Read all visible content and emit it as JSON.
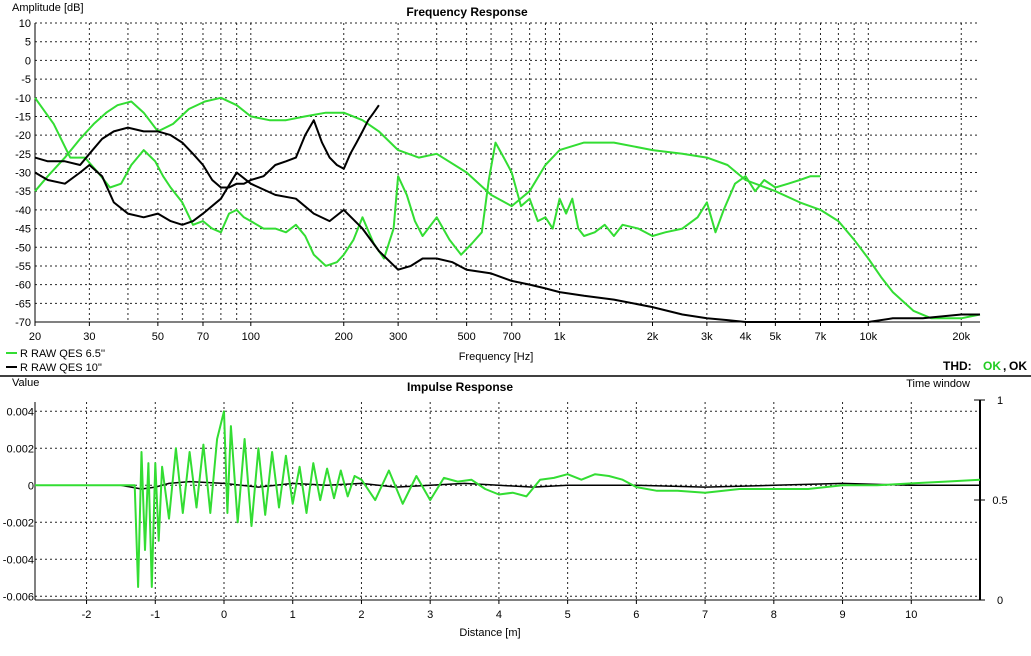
{
  "colors": {
    "green": "#33dd33",
    "black": "#000000",
    "ok_green": "#22cc22"
  },
  "freq_panel": {
    "title": "Frequency Response",
    "ylabel": "Amplitude [dB]",
    "xlabel": "Frequency [Hz]",
    "legend": [
      {
        "name": "R RAW QES 6.5''",
        "color": "#33dd33"
      },
      {
        "name": "R RAW QES 10''",
        "color": "#000000"
      }
    ],
    "thd": {
      "label": "THD:",
      "value1": "OK",
      "sep": ",",
      "value2": "OK"
    }
  },
  "impulse_panel": {
    "title": "Impulse Response",
    "ylabel": "Value",
    "xlabel": "Distance [m]",
    "right_label": "Time window"
  },
  "chart_data": [
    {
      "type": "line",
      "title": "Frequency Response",
      "xlabel": "Frequency [Hz]",
      "ylabel": "Amplitude [dB]",
      "x_scale": "log",
      "xlim": [
        20,
        23000
      ],
      "ylim": [
        -70,
        10
      ],
      "grid": true,
      "legend_position": "bottom-left",
      "y_ticks": [
        10,
        5,
        0,
        -5,
        -10,
        -15,
        -20,
        -25,
        -30,
        -35,
        -40,
        -45,
        -50,
        -55,
        -60,
        -65,
        -70
      ],
      "x_ticks": [
        {
          "v": 20,
          "label": "20"
        },
        {
          "v": 30,
          "label": "30"
        },
        {
          "v": 50,
          "label": "50"
        },
        {
          "v": 70,
          "label": "70"
        },
        {
          "v": 100,
          "label": "100"
        },
        {
          "v": 200,
          "label": "200"
        },
        {
          "v": 300,
          "label": "300"
        },
        {
          "v": 500,
          "label": "500"
        },
        {
          "v": 700,
          "label": "700"
        },
        {
          "v": 1000,
          "label": "1k"
        },
        {
          "v": 2000,
          "label": "2k"
        },
        {
          "v": 3000,
          "label": "3k"
        },
        {
          "v": 4000,
          "label": "4k"
        },
        {
          "v": 5000,
          "label": "5k"
        },
        {
          "v": 7000,
          "label": "7k"
        },
        {
          "v": 10000,
          "label": "10k"
        },
        {
          "v": 20000,
          "label": "20k"
        }
      ],
      "x_grid": [
        20,
        30,
        40,
        50,
        60,
        70,
        80,
        90,
        100,
        200,
        300,
        400,
        500,
        600,
        700,
        800,
        900,
        1000,
        2000,
        3000,
        4000,
        5000,
        6000,
        7000,
        8000,
        9000,
        10000,
        20000
      ],
      "series": [
        {
          "name": "R RAW QES 6.5''",
          "color": "#33dd33",
          "x": [
            20,
            22,
            25,
            28,
            31,
            34,
            37,
            41,
            45,
            50,
            56,
            63,
            71,
            80,
            90,
            100,
            115,
            130,
            150,
            175,
            200,
            230,
            260,
            300,
            350,
            400,
            500,
            600,
            700,
            800,
            900,
            1000,
            1200,
            1500,
            2000,
            2500,
            3000,
            3500,
            4000,
            5000,
            6000,
            7000,
            8000,
            9000,
            10000,
            11000,
            12000,
            14000,
            16000,
            20000,
            23000
          ],
          "y": [
            -35,
            -31,
            -26,
            -21,
            -17,
            -14,
            -12,
            -11,
            -14,
            -19,
            -17,
            -13,
            -11,
            -10,
            -12,
            -15,
            -16,
            -16,
            -15,
            -14,
            -14,
            -16,
            -19,
            -24,
            -26,
            -25,
            -30,
            -36,
            -39,
            -35,
            -28,
            -24,
            -22,
            -22,
            -24,
            -25,
            -26,
            -28,
            -32,
            -35,
            -38,
            -40,
            -43,
            -48,
            -53,
            -58,
            -62,
            -67,
            -69,
            -69,
            -68
          ]
        },
        {
          "name": "R RAW QES 6.5''",
          "color": "#33dd33",
          "x": [
            20,
            23,
            26,
            29,
            32,
            35,
            38,
            41,
            45,
            49,
            52,
            55,
            60,
            65,
            70,
            75,
            80,
            85,
            90,
            95,
            100,
            110,
            120,
            130,
            140,
            150,
            160,
            175,
            190,
            200,
            215,
            230,
            250,
            270,
            290,
            300,
            320,
            340,
            360,
            400,
            440,
            480,
            520,
            560,
            590,
            620,
            660,
            700,
            750,
            800,
            850,
            900,
            950,
            1000,
            1050,
            1100,
            1150,
            1200,
            1300,
            1400,
            1500,
            1600,
            1800,
            2000,
            2200,
            2500,
            2800,
            3000,
            3200,
            3400,
            3700,
            4000,
            4300,
            4600,
            5000,
            5500,
            6000,
            6500,
            7000
          ],
          "y": [
            -10,
            -17,
            -26,
            -26,
            -30,
            -34,
            -33,
            -28,
            -24,
            -27,
            -31,
            -34,
            -38,
            -44,
            -43,
            -45,
            -46,
            -41,
            -40,
            -42,
            -43,
            -45,
            -45,
            -46,
            -44,
            -47,
            -52,
            -55,
            -54,
            -52,
            -48,
            -42,
            -49,
            -53,
            -45,
            -31,
            -36,
            -43,
            -47,
            -42,
            -48,
            -52,
            -49,
            -46,
            -32,
            -22,
            -26,
            -30,
            -39,
            -37,
            -43,
            -42,
            -45,
            -37,
            -41,
            -37,
            -45,
            -47,
            -46,
            -44,
            -47,
            -44,
            -45,
            -47,
            -46,
            -45,
            -42,
            -38,
            -46,
            -40,
            -33,
            -31,
            -35,
            -32,
            -34,
            -33,
            -32,
            -31,
            -31
          ]
        },
        {
          "name": "R RAW QES 10''",
          "color": "#000000",
          "x": [
            20,
            22,
            25,
            28,
            30,
            33,
            36,
            40,
            45,
            50,
            55,
            60,
            65,
            70,
            75,
            80,
            85,
            90,
            95,
            100,
            110,
            120,
            130,
            140,
            150,
            160,
            170,
            180,
            190,
            200,
            210,
            220,
            230,
            240,
            250,
            260
          ],
          "y": [
            -26,
            -27,
            -27,
            -28,
            -25,
            -21,
            -19,
            -18,
            -19,
            -19,
            -20,
            -22,
            -25,
            -28,
            -32,
            -34,
            -34,
            -33,
            -33,
            -32,
            -31,
            -28,
            -27,
            -26,
            -20,
            -16,
            -22,
            -26,
            -28,
            -29,
            -25,
            -22,
            -19,
            -16,
            -14,
            -12
          ]
        },
        {
          "name": "R RAW QES 10''",
          "color": "#000000",
          "x": [
            20,
            22,
            25,
            28,
            30,
            33,
            36,
            40,
            45,
            50,
            55,
            60,
            65,
            70,
            80,
            90,
            100,
            120,
            140,
            160,
            180,
            200,
            230,
            260,
            300,
            330,
            360,
            400,
            450,
            500,
            600,
            700,
            800,
            900,
            1000,
            1200,
            1500,
            2000,
            2500,
            3000,
            3500,
            4000,
            5000,
            6000,
            8000,
            10000,
            12000,
            15000,
            20000,
            23000
          ],
          "y": [
            -30,
            -32,
            -33,
            -30,
            -28,
            -31,
            -38,
            -41,
            -42,
            -41,
            -43,
            -44,
            -43,
            -41,
            -37,
            -30,
            -33,
            -36,
            -37,
            -41,
            -43,
            -40,
            -45,
            -51,
            -56,
            -55,
            -53,
            -53,
            -54,
            -56,
            -57,
            -59,
            -60,
            -61,
            -62,
            -63,
            -64,
            -66,
            -68,
            -69,
            -69.5,
            -70,
            -70,
            -71,
            -71,
            -70,
            -69,
            -69,
            -68,
            -68
          ]
        }
      ]
    },
    {
      "type": "line",
      "title": "Impulse Response",
      "xlabel": "Distance [m]",
      "ylabel": "Value",
      "xlim": [
        -2.75,
        11
      ],
      "ylim": [
        -0.0062,
        0.0045
      ],
      "grid": true,
      "y_ticks": [
        {
          "v": 0.004,
          "label": "0.004"
        },
        {
          "v": 0.002,
          "label": "0.002"
        },
        {
          "v": 0,
          "label": "0"
        },
        {
          "v": -0.002,
          "label": "-0.002"
        },
        {
          "v": -0.004,
          "label": "-0.004"
        },
        {
          "v": -0.006,
          "label": "-0.006"
        }
      ],
      "x_ticks": [
        -2,
        -1,
        0,
        1,
        2,
        3,
        4,
        5,
        6,
        7,
        8,
        9,
        10
      ],
      "right_axis": {
        "label": "Time window",
        "ylim": [
          0,
          1
        ],
        "ticks": [
          {
            "v": 1,
            "label": "1"
          },
          {
            "v": 0.5,
            "label": "0.5"
          },
          {
            "v": 0,
            "label": "0"
          }
        ]
      },
      "series": [
        {
          "name": "R RAW QES 6.5''",
          "color": "#33dd33",
          "x": [
            -2.75,
            -1.5,
            -1.3,
            -1.25,
            -1.2,
            -1.15,
            -1.1,
            -1.05,
            -1.0,
            -0.95,
            -0.9,
            -0.8,
            -0.7,
            -0.6,
            -0.5,
            -0.4,
            -0.3,
            -0.2,
            -0.1,
            0,
            0.05,
            0.1,
            0.2,
            0.3,
            0.4,
            0.5,
            0.6,
            0.7,
            0.8,
            0.9,
            1.0,
            1.1,
            1.2,
            1.3,
            1.4,
            1.5,
            1.6,
            1.7,
            1.8,
            1.9,
            2.0,
            2.2,
            2.4,
            2.6,
            2.8,
            3.0,
            3.2,
            3.4,
            3.6,
            3.8,
            4.0,
            4.2,
            4.4,
            4.6,
            4.8,
            5.0,
            5.2,
            5.4,
            5.6,
            5.8,
            6.0,
            6.3,
            6.6,
            7.0,
            7.5,
            8.0,
            8.5,
            9.0,
            9.5,
            10.0,
            10.5,
            11.0
          ],
          "y": [
            0,
            0,
            0,
            -0.0055,
            0.0018,
            -0.0035,
            0.0012,
            -0.0055,
            0.0012,
            -0.003,
            0.001,
            -0.0018,
            0.002,
            -0.0015,
            0.0018,
            -0.0012,
            0.0022,
            -0.0015,
            0.0025,
            0.004,
            -0.0015,
            0.0032,
            -0.002,
            0.0025,
            -0.0022,
            0.002,
            -0.0016,
            0.0018,
            -0.0012,
            0.0016,
            -0.001,
            0.001,
            -0.0015,
            0.0012,
            -0.0008,
            0.0009,
            -0.0007,
            0.0008,
            -0.0006,
            0.0005,
            0.0003,
            -0.0008,
            0.0008,
            -0.001,
            0.0005,
            -0.0008,
            0.0004,
            0.0002,
            0.0003,
            -0.0002,
            -0.0005,
            -0.0004,
            -0.0006,
            0.0003,
            0.0004,
            0.0006,
            0.0003,
            0.0006,
            0.0005,
            0.0003,
            -0.0001,
            -0.0003,
            -0.0003,
            -0.0004,
            -0.0002,
            -0.0002,
            -0.0002,
            0,
            0,
            0.0001,
            0.0002,
            0.0003
          ]
        },
        {
          "name": "R RAW QES 10''",
          "color": "#000000",
          "x": [
            -2.75,
            -1.5,
            -1.2,
            -1.0,
            -0.8,
            -0.5,
            0,
            0.5,
            1,
            1.5,
            2,
            2.5,
            3,
            3.5,
            4,
            4.5,
            5,
            6,
            7,
            8,
            9,
            10,
            11
          ],
          "y": [
            0,
            0,
            -0.0002,
            -0.0001,
            0.0001,
            0.0002,
            0.0001,
            -0.0001,
            0.0001,
            0,
            0.0001,
            -0.0001,
            0,
            0.0001,
            0,
            -0.0001,
            0,
            0,
            -0.0001,
            0,
            0.0001,
            0,
            0
          ]
        }
      ]
    }
  ]
}
